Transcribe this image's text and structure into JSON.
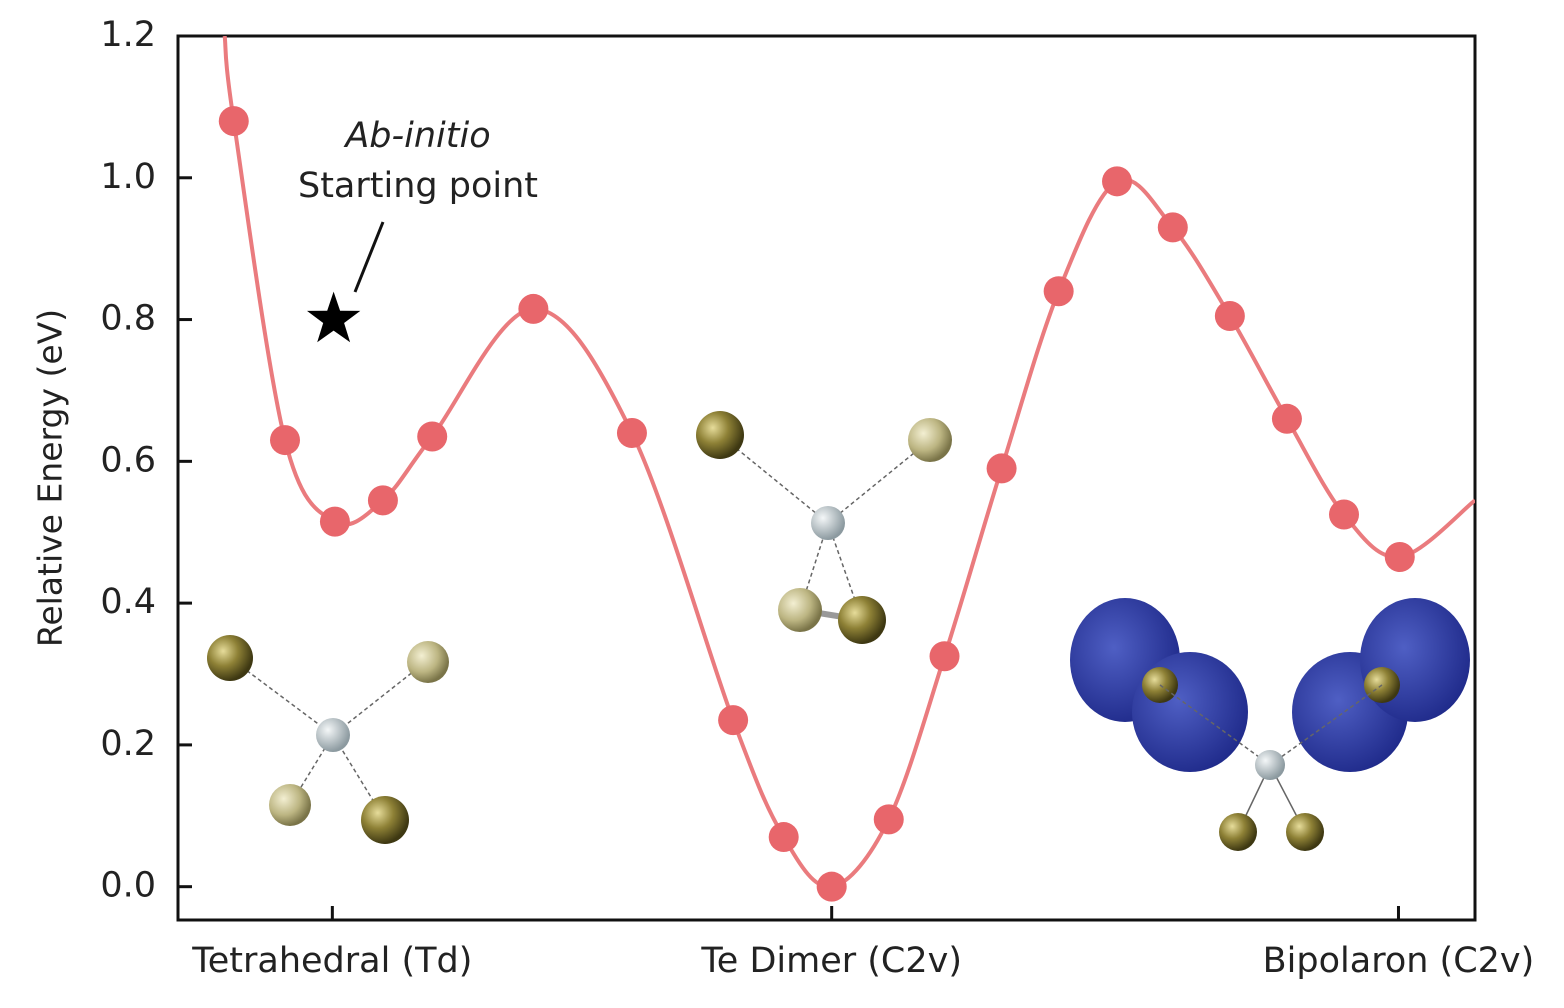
{
  "chart_data": {
    "type": "line",
    "ylabel": "Relative Energy (eV)",
    "ylim": [
      -0.047,
      1.2
    ],
    "yticks": [
      {
        "value": 0,
        "label": "0.0"
      },
      0.2,
      0.4,
      0.6,
      0.8,
      {
        "value": 1,
        "label": "1.0"
      },
      1.2
    ],
    "xlim": [
      0,
      100
    ],
    "xticks": [
      {
        "value": 11.9,
        "label": "Tetrahedral (Td)"
      },
      {
        "value": 50.4,
        "label": "Te Dimer (C2v)"
      },
      {
        "value": 94.1,
        "label": "Bipolaron (C2v)"
      }
    ],
    "color": "#e8666b",
    "line_color": "#ea7b7e",
    "points": {
      "x": [
        4.3,
        8.25,
        12.1,
        15.8,
        19.6,
        27.4,
        35.0,
        42.8,
        46.7,
        50.4,
        54.8,
        59.1,
        63.5,
        67.9,
        72.4,
        76.7,
        81.1,
        85.5,
        89.9,
        94.2
      ],
      "values": [
        1.08,
        0.63,
        0.515,
        0.545,
        0.635,
        0.815,
        0.64,
        0.235,
        0.07,
        0.0,
        0.095,
        0.325,
        0.59,
        0.84,
        0.995,
        0.93,
        0.805,
        0.66,
        0.525,
        0.465
      ]
    },
    "fit": {
      "x": [
        3.6,
        4.3,
        8.25,
        12.1,
        15.8,
        19.6,
        27.4,
        35.0,
        42.8,
        46.7,
        50.4,
        54.8,
        59.1,
        63.5,
        67.9,
        72.4,
        76.7,
        81.1,
        85.5,
        89.9,
        94.2,
        100
      ],
      "values": [
        1.2,
        1.08,
        0.63,
        0.515,
        0.545,
        0.635,
        0.815,
        0.64,
        0.235,
        0.07,
        0.0,
        0.095,
        0.325,
        0.59,
        0.84,
        0.995,
        0.93,
        0.805,
        0.66,
        0.525,
        0.465,
        0.545
      ]
    },
    "star": {
      "x": 12.0,
      "y": 0.8
    },
    "annotation": [
      "Ab-initio",
      "Starting point"
    ]
  }
}
